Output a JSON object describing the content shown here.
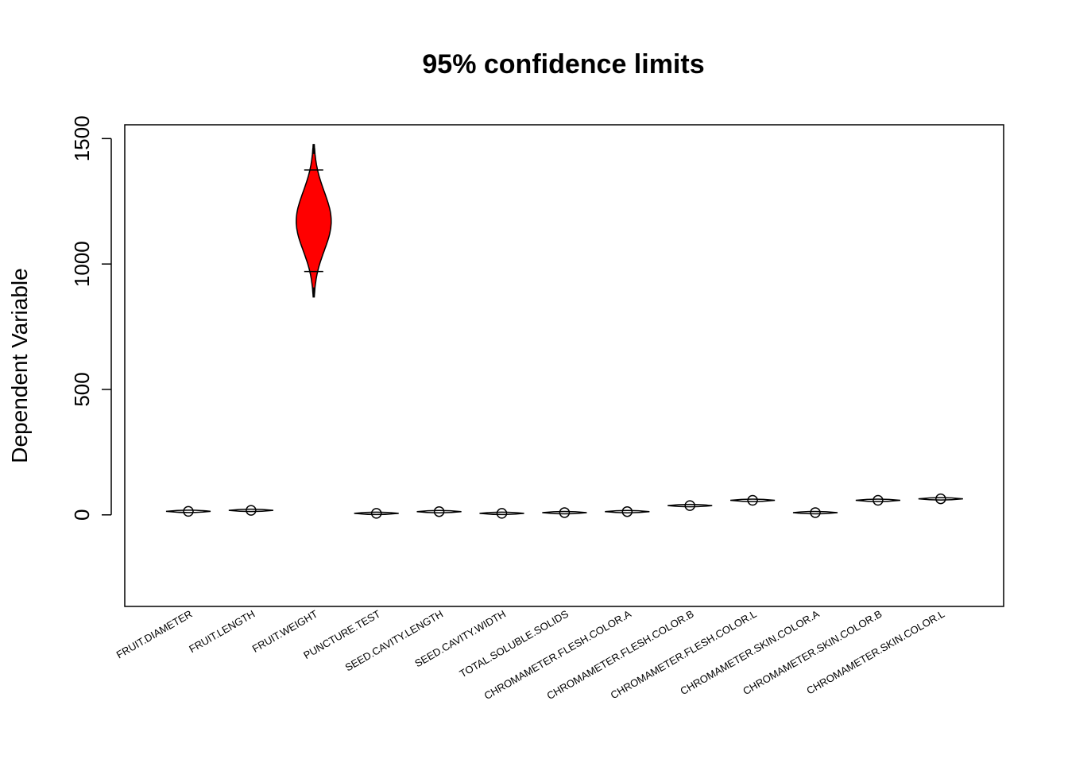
{
  "chart_data": {
    "type": "violin",
    "title": "95% confidence limits",
    "xlabel": "",
    "ylabel": "Dependent Variable",
    "ylim": [
      -365,
      1555
    ],
    "yticks": [
      0,
      500,
      1000,
      1500
    ],
    "ytick_labels": [
      "0",
      "500",
      "1000",
      "1500"
    ],
    "grid": false,
    "legend": "none",
    "categories": [
      "FRUIT.DIAMETER",
      "FRUIT.LENGTH",
      "FRUIT.WEIGHT",
      "PUNCTURE.TEST",
      "SEED.CAVITY.LENGTH",
      "SEED.CAVITY.WIDTH",
      "TOTAL.SOLUBLE.SOLIDS",
      "CHROMAMETER.FLESH.COLOR.A",
      "CHROMAMETER.FLESH.COLOR.B",
      "CHROMAMETER.FLESH.COLOR.L",
      "CHROMAMETER.SKIN.COLOR.A",
      "CHROMAMETER.SKIN.COLOR.B",
      "CHROMAMETER.SKIN.COLOR.L"
    ],
    "means": [
      14,
      18,
      1170,
      6,
      13,
      6,
      9,
      13,
      37,
      58,
      9,
      58,
      64
    ],
    "lower_limits": [
      11,
      15,
      970,
      4,
      11,
      4,
      7,
      11,
      33,
      55,
      7,
      55,
      61
    ],
    "upper_limits": [
      17,
      21,
      1375,
      8,
      15,
      8,
      11,
      15,
      41,
      61,
      11,
      61,
      67
    ],
    "colors": {
      "highlight": "#ff0000",
      "default": "#ffffff",
      "line": "#000000"
    }
  }
}
